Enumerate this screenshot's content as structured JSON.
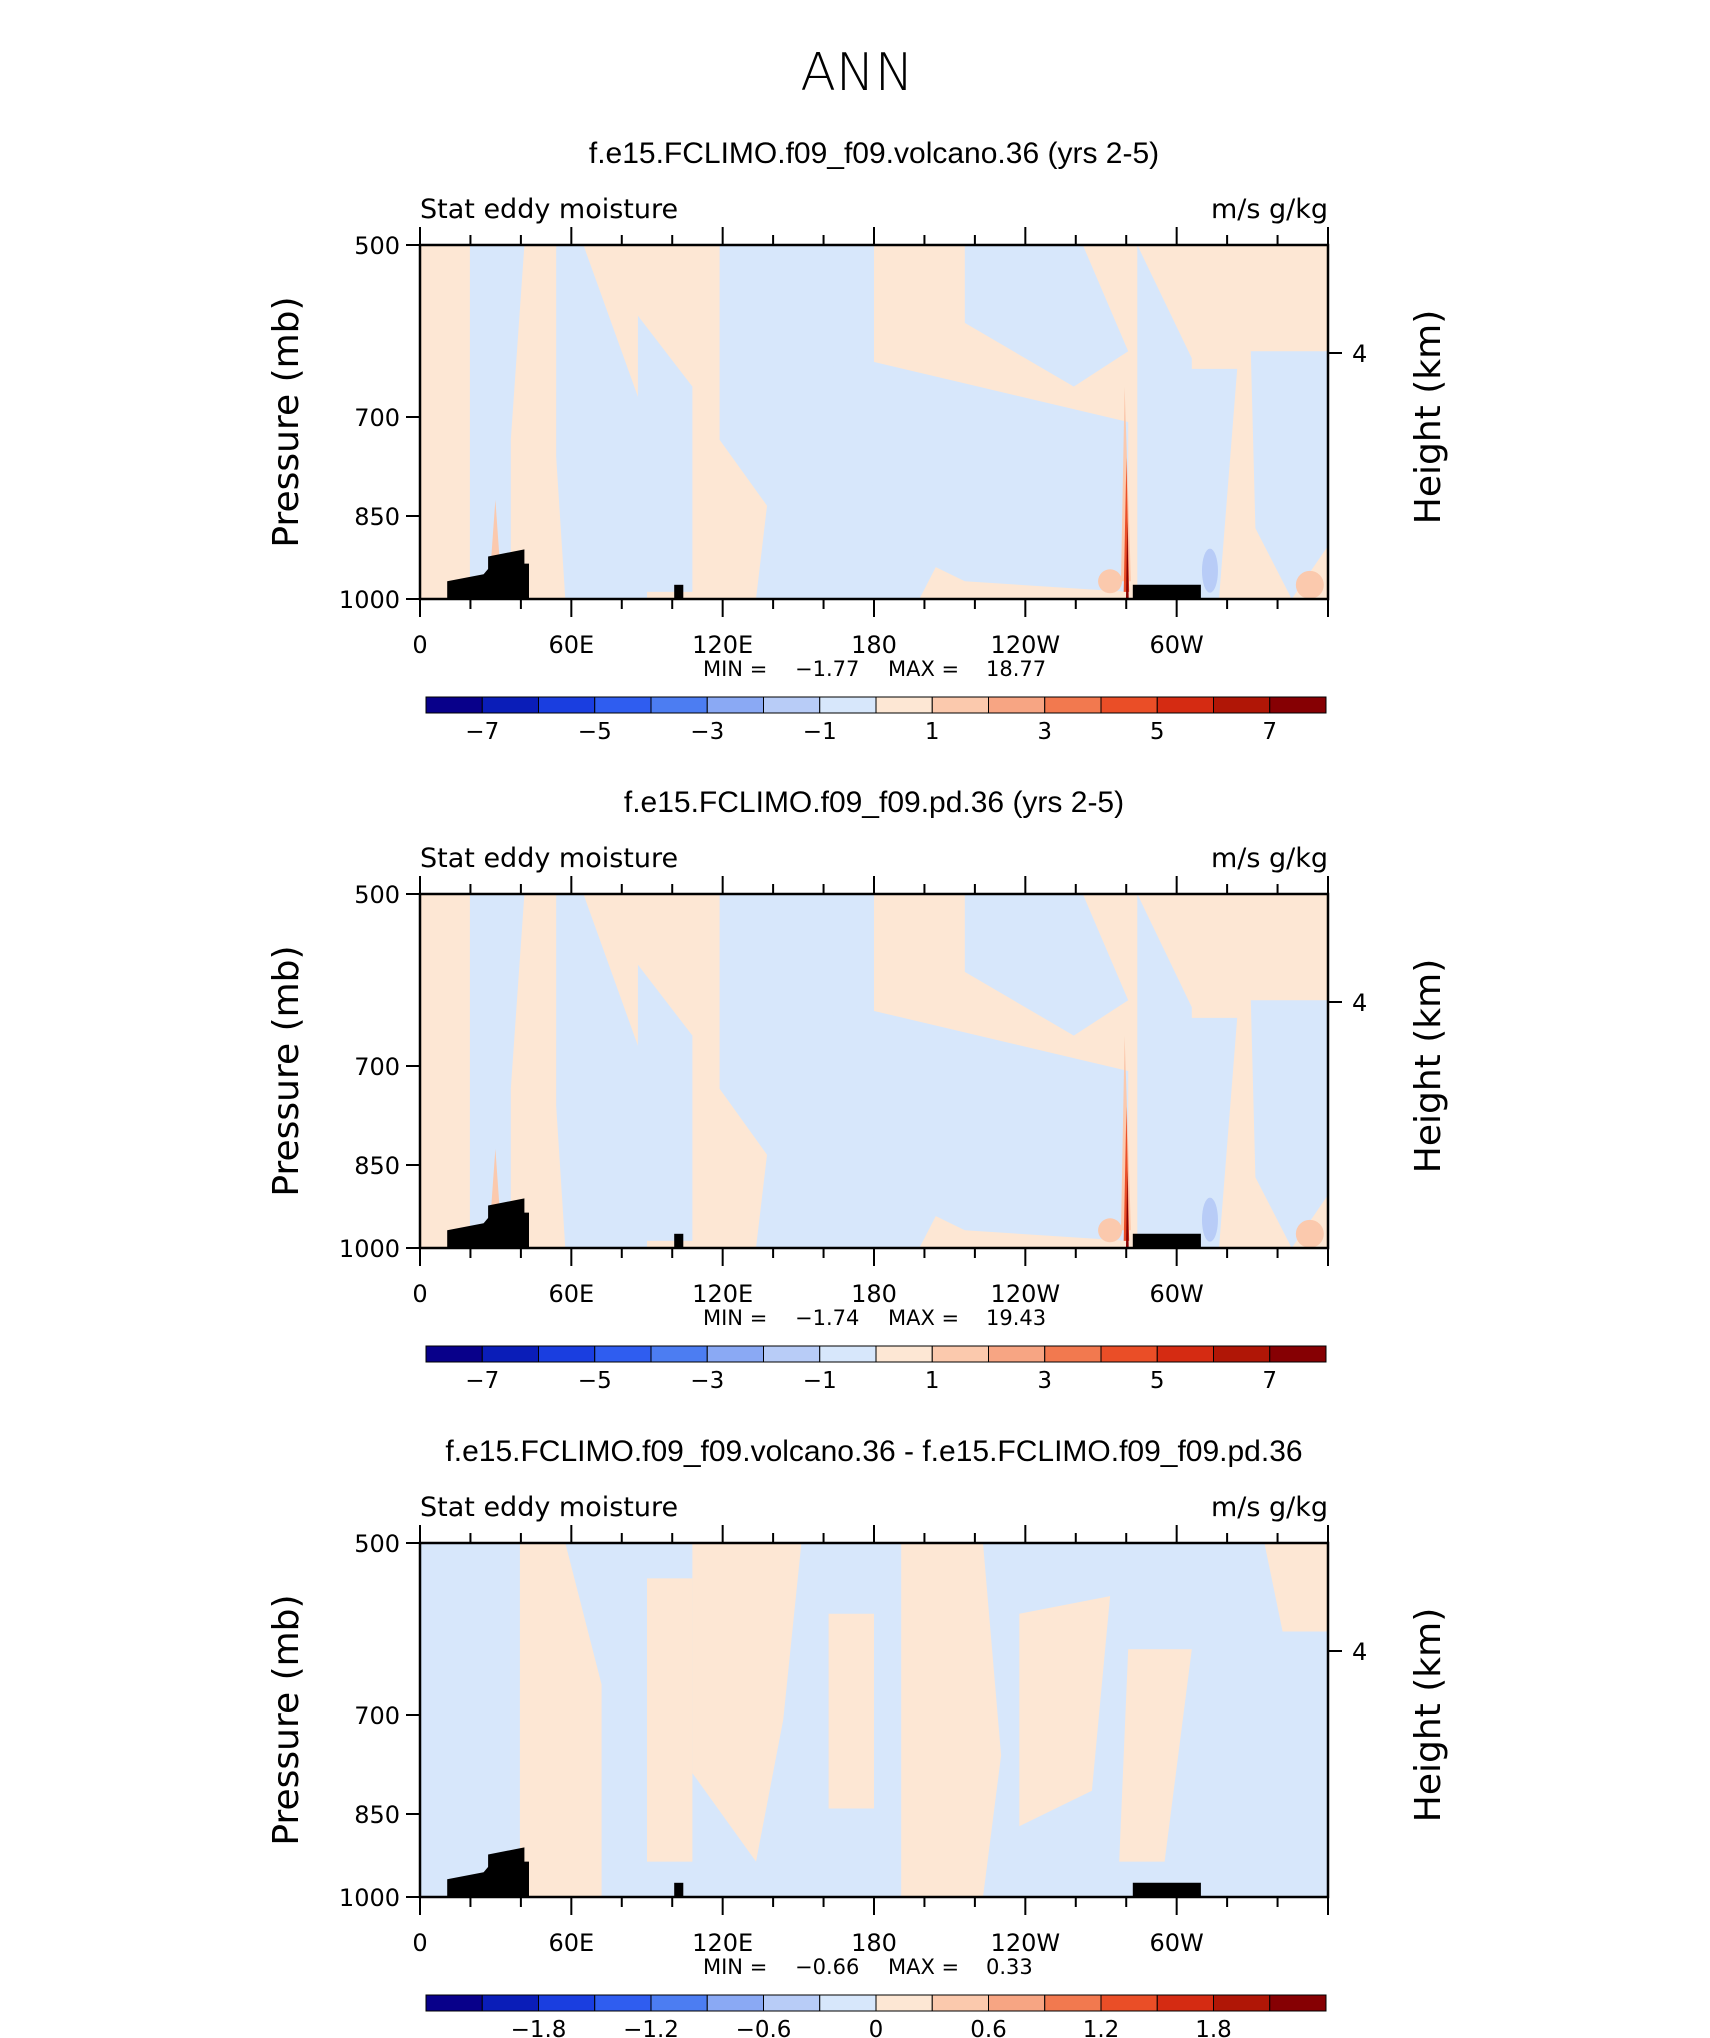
{
  "figure": {
    "season_title": "ANN"
  },
  "colors": {
    "frame": "#000000",
    "terrain": "#000000",
    "cmap": [
      "#08008a",
      "#0a1db8",
      "#1a3ee0",
      "#2f5df0",
      "#4c7df2",
      "#8aa9f4",
      "#b8ccf7",
      "#d7e7fb",
      "#fde7d4",
      "#fbc9ad",
      "#f7a583",
      "#f2794f",
      "#ea4e27",
      "#d52b12",
      "#b01606",
      "#860003"
    ]
  },
  "panels": [
    {
      "title": "f.e15.FCLIMO.f09_f09.volcano.36 (yrs 2-5)",
      "left_label": "Stat eddy moisture",
      "right_label": "m/s g/kg",
      "y_axis_title": "Pressure (mb)",
      "right_axis_title": "Height (km)",
      "y_ticks": [
        "500",
        "700",
        "850",
        "1000"
      ],
      "right_ticks": [
        "4"
      ],
      "x_ticks": [
        "0",
        "60E",
        "120E",
        "180",
        "120W",
        "60W"
      ],
      "stats": {
        "min_label": "MIN =",
        "min_value": "−1.77",
        "max_label": "MAX =",
        "max_value": "18.77"
      },
      "colorbar_labels": [
        "−7",
        "−5",
        "−3",
        "−1",
        "1",
        "3",
        "5",
        "7"
      ]
    },
    {
      "title": "f.e15.FCLIMO.f09_f09.pd.36 (yrs 2-5)",
      "left_label": "Stat eddy moisture",
      "right_label": "m/s g/kg",
      "y_axis_title": "Pressure (mb)",
      "right_axis_title": "Height (km)",
      "y_ticks": [
        "500",
        "700",
        "850",
        "1000"
      ],
      "right_ticks": [
        "4"
      ],
      "x_ticks": [
        "0",
        "60E",
        "120E",
        "180",
        "120W",
        "60W"
      ],
      "stats": {
        "min_label": "MIN =",
        "min_value": "−1.74",
        "max_label": "MAX =",
        "max_value": "19.43"
      },
      "colorbar_labels": [
        "−7",
        "−5",
        "−3",
        "−1",
        "1",
        "3",
        "5",
        "7"
      ]
    },
    {
      "title": "f.e15.FCLIMO.f09_f09.volcano.36 - f.e15.FCLIMO.f09_f09.pd.36",
      "left_label": "Stat eddy moisture",
      "right_label": "m/s g/kg",
      "y_axis_title": "Pressure (mb)",
      "right_axis_title": "Height (km)",
      "y_ticks": [
        "500",
        "700",
        "850",
        "1000"
      ],
      "right_ticks": [
        "4"
      ],
      "x_ticks": [
        "0",
        "60E",
        "120E",
        "180",
        "120W",
        "60W"
      ],
      "stats": {
        "min_label": "MIN =",
        "min_value": "−0.66",
        "max_label": "MAX =",
        "max_value": "0.33"
      },
      "colorbar_labels": [
        "−1.8",
        "−1.2",
        "−0.6",
        "0",
        "0.6",
        "1.2",
        "1.8"
      ]
    }
  ],
  "chart_data": [
    {
      "type": "heatmap",
      "title": "f.e15.FCLIMO.f09_f09.volcano.36 (yrs 2-5)",
      "xlabel": "",
      "ylabel": "Pressure (mb)",
      "y2label": "Height (km)",
      "x_range": [
        0,
        360
      ],
      "y_range_mb": [
        500,
        1000
      ],
      "x_tick_values": [
        0,
        60,
        120,
        180,
        240,
        300
      ],
      "y_tick_values_mb": [
        500,
        700,
        850,
        1000
      ],
      "height_tick_km": 4,
      "min": -1.77,
      "max": 18.77,
      "colorbar_levels": [
        -7,
        -6,
        -5,
        -4,
        -3,
        -2,
        -1,
        0,
        1,
        2,
        3,
        4,
        5,
        6,
        7
      ]
    },
    {
      "type": "heatmap",
      "title": "f.e15.FCLIMO.f09_f09.pd.36 (yrs 2-5)",
      "xlabel": "",
      "ylabel": "Pressure (mb)",
      "y2label": "Height (km)",
      "x_range": [
        0,
        360
      ],
      "y_range_mb": [
        500,
        1000
      ],
      "x_tick_values": [
        0,
        60,
        120,
        180,
        240,
        300
      ],
      "y_tick_values_mb": [
        500,
        700,
        850,
        1000
      ],
      "height_tick_km": 4,
      "min": -1.74,
      "max": 19.43,
      "colorbar_levels": [
        -7,
        -6,
        -5,
        -4,
        -3,
        -2,
        -1,
        0,
        1,
        2,
        3,
        4,
        5,
        6,
        7
      ]
    },
    {
      "type": "heatmap",
      "title": "f.e15.FCLIMO.f09_f09.volcano.36 - f.e15.FCLIMO.f09_f09.pd.36",
      "xlabel": "",
      "ylabel": "Pressure (mb)",
      "y2label": "Height (km)",
      "x_range": [
        0,
        360
      ],
      "y_range_mb": [
        500,
        1000
      ],
      "x_tick_values": [
        0,
        60,
        120,
        180,
        240,
        300
      ],
      "y_tick_values_mb": [
        500,
        700,
        850,
        1000
      ],
      "height_tick_km": 4,
      "min": -0.66,
      "max": 0.33,
      "colorbar_levels": [
        -2.1,
        -1.8,
        -1.5,
        -1.2,
        -0.9,
        -0.6,
        -0.3,
        0,
        0.3,
        0.6,
        0.9,
        1.2,
        1.5,
        1.8,
        2.1
      ]
    }
  ]
}
